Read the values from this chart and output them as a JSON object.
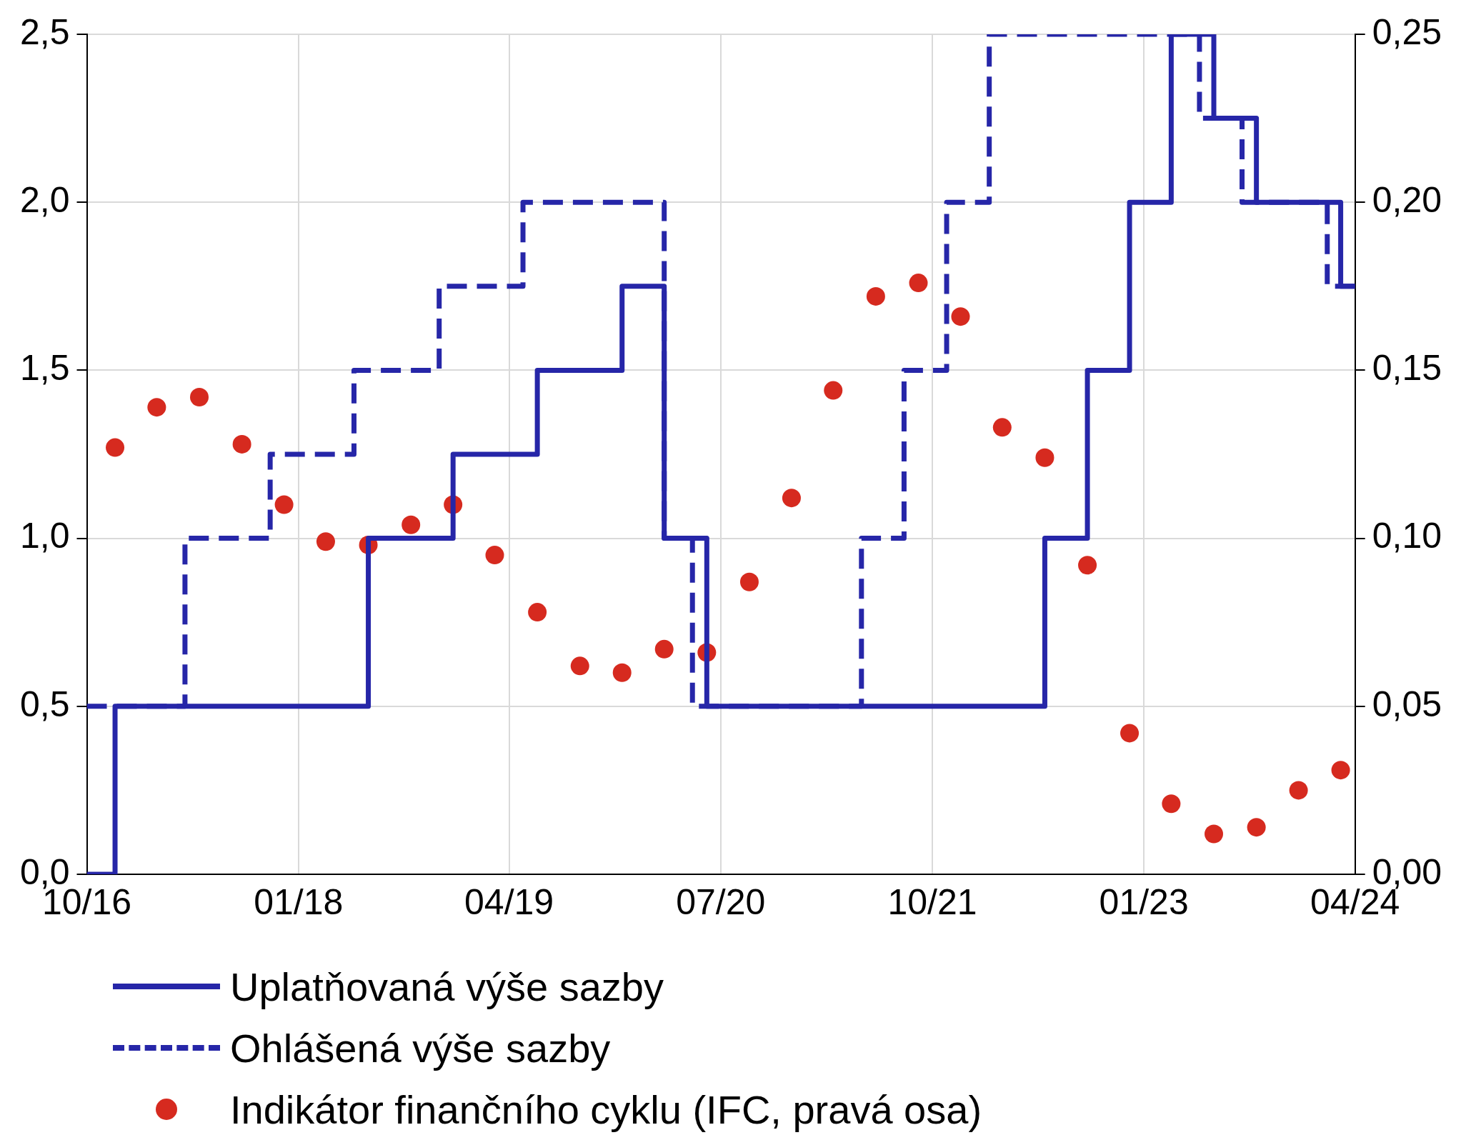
{
  "chart_data": {
    "type": "line",
    "series": [
      {
        "name": "Uplatňovaná výše sazby",
        "type": "step",
        "color": "#2626a8",
        "line_style": "solid",
        "x": [
          "2016-10",
          "2016-12",
          "2018-06",
          "2018-12",
          "2019-06",
          "2019-12",
          "2020-03",
          "2020-06",
          "2022-06",
          "2022-09",
          "2022-12",
          "2023-03",
          "2023-06",
          "2023-09",
          "2024-03",
          "2024-04"
        ],
        "values": [
          0,
          0.5,
          1.0,
          1.25,
          1.5,
          1.75,
          1.0,
          0.5,
          1.0,
          1.5,
          2.0,
          2.5,
          2.25,
          2.0,
          1.75,
          1.75
        ]
      },
      {
        "name": "Ohlášená výše sazby",
        "type": "step",
        "color": "#2626a8",
        "line_style": "dashed",
        "x": [
          "2016-10",
          "2017-05",
          "2017-11",
          "2018-05",
          "2018-11",
          "2019-05",
          "2020-03",
          "2020-05",
          "2021-05",
          "2021-08",
          "2021-11",
          "2022-02",
          "2023-05",
          "2023-08",
          "2024-02",
          "2024-04"
        ],
        "values": [
          0.5,
          1.0,
          1.25,
          1.5,
          1.75,
          2.0,
          1.0,
          0.5,
          1.0,
          1.5,
          2.0,
          2.5,
          2.25,
          2.0,
          1.75,
          1.75
        ]
      },
      {
        "name": "Indikátor finančního cyklu (IFC, pravá osa)",
        "type": "scatter",
        "axis": "y2",
        "color": "#d62a1f",
        "marker": "circle",
        "x": [
          "2016-12",
          "2017-03",
          "2017-06",
          "2017-09",
          "2017-12",
          "2018-03",
          "2018-06",
          "2018-09",
          "2018-12",
          "2019-03",
          "2019-06",
          "2019-09",
          "2019-12",
          "2020-03",
          "2020-06",
          "2020-09",
          "2020-12",
          "2021-03",
          "2021-06",
          "2021-09",
          "2021-12",
          "2022-03",
          "2022-06",
          "2022-09",
          "2022-12",
          "2023-03",
          "2023-06",
          "2023-09",
          "2023-12",
          "2024-03"
        ],
        "values": [
          0.127,
          0.139,
          0.142,
          0.128,
          0.11,
          0.099,
          0.098,
          0.104,
          0.11,
          0.095,
          0.078,
          0.062,
          0.06,
          0.067,
          0.066,
          0.087,
          0.112,
          0.144,
          0.172,
          0.176,
          0.166,
          0.133,
          0.124,
          0.092,
          0.042,
          0.021,
          0.012,
          0.014,
          0.025,
          0.031
        ]
      }
    ],
    "xlim": [
      "2016-10",
      "2024-04"
    ],
    "xticks": [
      {
        "value": "2016-10",
        "label": "10/16"
      },
      {
        "value": "2018-01",
        "label": "01/18"
      },
      {
        "value": "2019-04",
        "label": "04/19"
      },
      {
        "value": "2020-07",
        "label": "07/20"
      },
      {
        "value": "2021-10",
        "label": "10/21"
      },
      {
        "value": "2023-01",
        "label": "01/23"
      },
      {
        "value": "2024-04",
        "label": "04/24"
      }
    ],
    "ylim": [
      0,
      2.5
    ],
    "yticks": [
      {
        "value": 0,
        "label": "0,0"
      },
      {
        "value": 0.5,
        "label": "0,5"
      },
      {
        "value": 1,
        "label": "1,0"
      },
      {
        "value": 1.5,
        "label": "1,5"
      },
      {
        "value": 2,
        "label": "2,0"
      },
      {
        "value": 2.5,
        "label": "2,5"
      }
    ],
    "y2lim": [
      0,
      0.25
    ],
    "y2ticks": [
      {
        "value": 0,
        "label": "0,00"
      },
      {
        "value": 0.05,
        "label": "0,05"
      },
      {
        "value": 0.1,
        "label": "0,10"
      },
      {
        "value": 0.15,
        "label": "0,15"
      },
      {
        "value": 0.2,
        "label": "0,20"
      },
      {
        "value": 0.25,
        "label": "0,25"
      }
    ],
    "grid": true,
    "legend": "bottom"
  }
}
